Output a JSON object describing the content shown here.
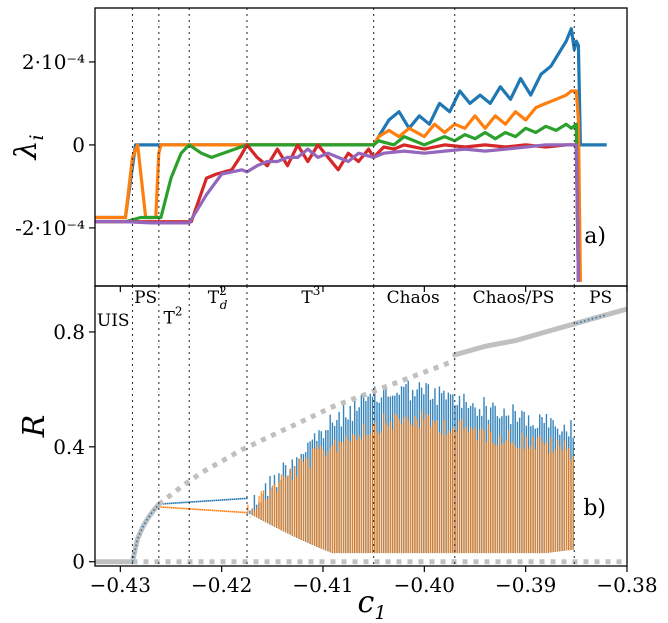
{
  "chart_data": [
    {
      "type": "line",
      "panel": "a)",
      "ylabel_base": "λ",
      "ylabel_sub": "i",
      "xlim": [
        -0.4325,
        -0.38
      ],
      "ylim": [
        -0.00034,
        0.00033
      ],
      "yticks": [
        {
          "value": 0.0002,
          "label": "2·10⁻⁴"
        },
        {
          "value": 0,
          "label": "0"
        },
        {
          "value": -0.0002,
          "label": "-2·10⁻⁴"
        }
      ],
      "series": [
        {
          "color": "#1f77b4",
          "x": [
            -0.4325,
            -0.4295,
            -0.4285,
            -0.426,
            -0.4232,
            -0.42,
            -0.4175,
            -0.41,
            -0.405,
            -0.4045,
            -0.4035,
            -0.4025,
            -0.4015,
            -0.4005,
            -0.3995,
            -0.3985,
            -0.3975,
            -0.3965,
            -0.3955,
            -0.3945,
            -0.3935,
            -0.3925,
            -0.3915,
            -0.3905,
            -0.3895,
            -0.3885,
            -0.3875,
            -0.3865,
            -0.386,
            -0.3855,
            -0.3852,
            -0.385,
            -0.3848,
            -0.3846,
            -0.382
          ],
          "y": [
            -0.000175,
            -0.000175,
            0,
            0,
            0,
            0,
            0,
            0,
            0,
            2e-05,
            6e-05,
            8e-05,
            4e-05,
            7e-05,
            5e-05,
            0.0001,
            8e-05,
            0.00013,
            0.0001,
            0.00012,
            0.0001,
            0.00014,
            0.00011,
            0.00016,
            0.00012,
            0.00017,
            0.00019,
            0.00023,
            0.00025,
            0.00028,
            0.00023,
            0.00025,
            0.00024,
            0,
            0
          ]
        },
        {
          "color": "#ff7f0e",
          "x": [
            -0.4325,
            -0.4295,
            -0.4288,
            -0.4283,
            -0.4275,
            -0.4265,
            -0.4262,
            -0.426,
            -0.4232,
            -0.4175,
            -0.41,
            -0.405,
            -0.4045,
            -0.4035,
            -0.4025,
            -0.4015,
            -0.4,
            -0.399,
            -0.398,
            -0.397,
            -0.396,
            -0.395,
            -0.394,
            -0.393,
            -0.392,
            -0.391,
            -0.39,
            -0.389,
            -0.388,
            -0.387,
            -0.386,
            -0.3855,
            -0.385,
            -0.3848,
            -0.3846
          ],
          "y": [
            -0.000175,
            -0.000175,
            -3e-05,
            0,
            -0.000175,
            -0.000175,
            -2e-05,
            0,
            0,
            0,
            0,
            0,
            2e-05,
            3.5e-05,
            2e-05,
            4e-05,
            2e-05,
            5e-05,
            3e-05,
            5e-05,
            4e-05,
            7e-05,
            4e-05,
            7e-05,
            5e-05,
            8e-05,
            6e-05,
            9e-05,
            0.0001,
            0.00011,
            0.00012,
            0.00013,
            0.00013,
            6e-05,
            -0.00033
          ]
        },
        {
          "color": "#2ca02c",
          "x": [
            -0.4325,
            -0.4295,
            -0.428,
            -0.4265,
            -0.426,
            -0.425,
            -0.424,
            -0.4232,
            -0.422,
            -0.421,
            -0.4175,
            -0.41,
            -0.405,
            -0.4045,
            -0.403,
            -0.402,
            -0.4,
            -0.398,
            -0.397,
            -0.396,
            -0.395,
            -0.394,
            -0.393,
            -0.392,
            -0.391,
            -0.39,
            -0.389,
            -0.388,
            -0.387,
            -0.386,
            -0.3855,
            -0.385,
            -0.3848
          ],
          "y": [
            -0.000185,
            -0.000185,
            -0.000175,
            -0.000175,
            -0.000175,
            -8e-05,
            -2e-05,
            0,
            -2e-05,
            -3e-05,
            0,
            0,
            0,
            1e-05,
            0,
            2e-05,
            0,
            2e-05,
            1e-05,
            2.5e-05,
            1.5e-05,
            3e-05,
            1.5e-05,
            3e-05,
            2e-05,
            4e-05,
            3e-05,
            4.5e-05,
            3.5e-05,
            5e-05,
            4e-05,
            5e-05,
            -0.00033
          ]
        },
        {
          "color": "#d62728",
          "x": [
            -0.4325,
            -0.4295,
            -0.426,
            -0.423,
            -0.4215,
            -0.4205,
            -0.419,
            -0.4182,
            -0.4175,
            -0.4165,
            -0.4155,
            -0.4145,
            -0.4135,
            -0.4125,
            -0.4115,
            -0.4105,
            -0.4095,
            -0.4085,
            -0.4075,
            -0.4065,
            -0.4055,
            -0.405,
            -0.404,
            -0.403,
            -0.402,
            -0.4,
            -0.398,
            -0.396,
            -0.394,
            -0.392,
            -0.39,
            -0.388,
            -0.386,
            -0.385,
            -0.3848
          ],
          "y": [
            -0.000185,
            -0.000185,
            -0.000185,
            -0.000185,
            -8e-05,
            -7e-05,
            -6e-05,
            -3e-05,
            0,
            -3e-05,
            -5e-05,
            -1e-05,
            -5e-05,
            0,
            -4e-05,
            0,
            -3e-05,
            -6e-05,
            -2e-05,
            -4e-05,
            -1e-05,
            -3e-05,
            -5e-06,
            -1e-05,
            0,
            -1e-05,
            0,
            -5e-06,
            0,
            -5e-06,
            0,
            -5e-06,
            0,
            0,
            -0.00033
          ]
        },
        {
          "color": "#9467bd",
          "x": [
            -0.4325,
            -0.4295,
            -0.427,
            -0.4232,
            -0.4215,
            -0.42,
            -0.419,
            -0.418,
            -0.4175,
            -0.4165,
            -0.4155,
            -0.4145,
            -0.4135,
            -0.4125,
            -0.4115,
            -0.4105,
            -0.4095,
            -0.4085,
            -0.4075,
            -0.4065,
            -0.405,
            -0.404,
            -0.402,
            -0.4,
            -0.398,
            -0.396,
            -0.394,
            -0.392,
            -0.39,
            -0.388,
            -0.386,
            -0.385,
            -0.3848
          ],
          "y": [
            -0.000185,
            -0.000185,
            -0.000188,
            -0.000188,
            -0.00012,
            -7e-05,
            -6.5e-05,
            -6e-05,
            -6.5e-05,
            -5e-05,
            -4e-05,
            -4e-05,
            -3e-05,
            -3e-05,
            -1e-05,
            -3e-05,
            -2e-05,
            -3e-05,
            -4e-05,
            -2e-05,
            -3e-05,
            -2e-05,
            -1.5e-05,
            -2e-05,
            -1.5e-05,
            -1e-05,
            -1.5e-05,
            -1e-05,
            -5e-06,
            0,
            0,
            0,
            -0.00033
          ]
        }
      ]
    },
    {
      "type": "scatter",
      "panel": "b)",
      "ylabel": "R",
      "xlabel_base": "c",
      "xlabel_sub": "1",
      "xlim": [
        -0.4325,
        -0.38
      ],
      "ylim": [
        -0.015,
        0.96
      ],
      "xticks": [
        {
          "value": -0.43,
          "label": "−0.43"
        },
        {
          "value": -0.42,
          "label": "−0.42"
        },
        {
          "value": -0.41,
          "label": "−0.41"
        },
        {
          "value": -0.4,
          "label": "−0.40"
        },
        {
          "value": -0.39,
          "label": "−0.39"
        },
        {
          "value": -0.38,
          "label": "−0.38"
        }
      ],
      "yticks": [
        {
          "value": 0,
          "label": "0"
        },
        {
          "value": 0.4,
          "label": "0.4"
        },
        {
          "value": 0.8,
          "label": "0.8"
        }
      ],
      "curves": [
        {
          "color": "#c0c0c0",
          "style": "solid",
          "x": [
            -0.4325,
            -0.4288
          ],
          "y": [
            0,
            0
          ]
        },
        {
          "color": "#c0c0c0",
          "style": "solid",
          "x": [
            -0.4288,
            -0.4283,
            -0.4278,
            -0.4273,
            -0.4268,
            -0.4262
          ],
          "y": [
            0,
            0.08,
            0.12,
            0.15,
            0.175,
            0.2
          ]
        },
        {
          "color": "#c0c0c0",
          "style": "dotted",
          "x": [
            -0.4262,
            -0.424,
            -0.422,
            -0.42,
            -0.418,
            -0.415,
            -0.412,
            -0.409,
            -0.406,
            -0.403,
            -0.4,
            -0.397
          ],
          "y": [
            0.2,
            0.26,
            0.31,
            0.35,
            0.39,
            0.44,
            0.49,
            0.54,
            0.58,
            0.62,
            0.66,
            0.7
          ]
        },
        {
          "color": "#c0c0c0",
          "style": "solid",
          "x": [
            -0.397,
            -0.394,
            -0.391,
            -0.388,
            -0.385,
            -0.382,
            -0.38
          ],
          "y": [
            0.72,
            0.75,
            0.77,
            0.8,
            0.83,
            0.86,
            0.88
          ]
        },
        {
          "color": "#c0c0c0",
          "style": "dotted",
          "x": [
            -0.4288,
            -0.38
          ],
          "y": [
            0,
            0
          ]
        },
        {
          "color": "#1f77b4",
          "style": "dotted-thin",
          "x": [
            -0.4288,
            -0.4283,
            -0.4278,
            -0.4273,
            -0.4268,
            -0.4262
          ],
          "y": [
            0,
            0.08,
            0.12,
            0.15,
            0.175,
            0.2
          ]
        },
        {
          "color": "#1f77b4",
          "style": "dotted-thin",
          "x": [
            -0.385,
            -0.382
          ],
          "y": [
            0.83,
            0.86
          ]
        }
      ],
      "bifurcation": {
        "xstart": -0.4262,
        "xsplit": -0.4175,
        "xend": -0.3852,
        "upper_start": 0.2,
        "upper_split": 0.22,
        "lower_start": 0.19,
        "lower_split": 0.17,
        "blue_max_peak": 0.64,
        "orange_max_peak": 0.53,
        "min_bottom": 0.03,
        "blue_color": "#1f77b4",
        "orange_color": "#ff7f0e"
      }
    }
  ],
  "regions": {
    "boundaries": [
      -0.4288,
      -0.4262,
      -0.4232,
      -0.4175,
      -0.405,
      -0.397,
      -0.3852
    ],
    "labels": [
      {
        "text": "UIS",
        "x": -0.4307,
        "y": 0.82
      },
      {
        "text": "PS",
        "x": -0.4275,
        "y": 0.9
      },
      {
        "text": "T",
        "sup": "2",
        "x": -0.4248,
        "y": 0.83
      },
      {
        "text": "T",
        "sup": "2",
        "sub": "d",
        "x": -0.4204,
        "y": 0.9
      },
      {
        "text": "T",
        "sup": "3",
        "x": -0.4112,
        "y": 0.9
      },
      {
        "text": "Chaos",
        "x": -0.4011,
        "y": 0.9
      },
      {
        "text": "Chaos/PS",
        "x": -0.3912,
        "y": 0.9
      },
      {
        "text": "PS",
        "x": -0.3826,
        "y": 0.9
      }
    ]
  }
}
